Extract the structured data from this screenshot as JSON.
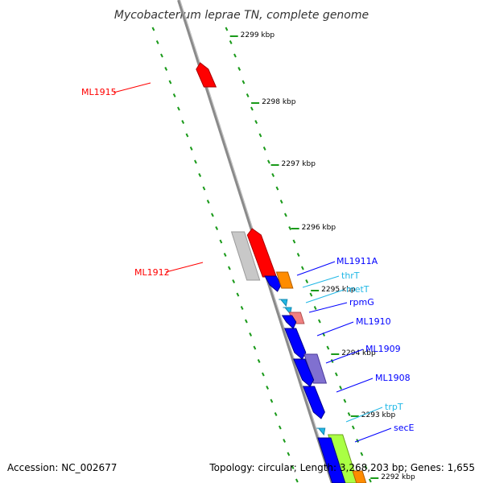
{
  "title": "Mycobacterium leprae TN, complete genome",
  "ticks": [
    "2299 kbp",
    "2298 kbp",
    "2297 kbp",
    "2296 kbp",
    "2295 kbp",
    "2294 kbp",
    "2293 kbp",
    "2292 kbp"
  ],
  "genes": [
    {
      "name": "ML1915",
      "color": "#ff0000"
    },
    {
      "name": "ML1912",
      "color": "#ff0000"
    },
    {
      "name": "ML1911A",
      "color": "#0000ff"
    },
    {
      "name": "thrT",
      "color": "#22b8e6"
    },
    {
      "name": "metT",
      "color": "#22b8e6"
    },
    {
      "name": "rpmG",
      "color": "#0000ff"
    },
    {
      "name": "ML1910",
      "color": "#0000ff"
    },
    {
      "name": "ML1909",
      "color": "#0000ff"
    },
    {
      "name": "ML1908",
      "color": "#0000ff"
    },
    {
      "name": "trpT",
      "color": "#22b8e6"
    },
    {
      "name": "secE",
      "color": "#0000ff"
    }
  ],
  "footer": {
    "accession": "Accession: NC_002677",
    "topology": "Topology: circular; Length: 3,268,203 bp; Genes: 1,655"
  }
}
